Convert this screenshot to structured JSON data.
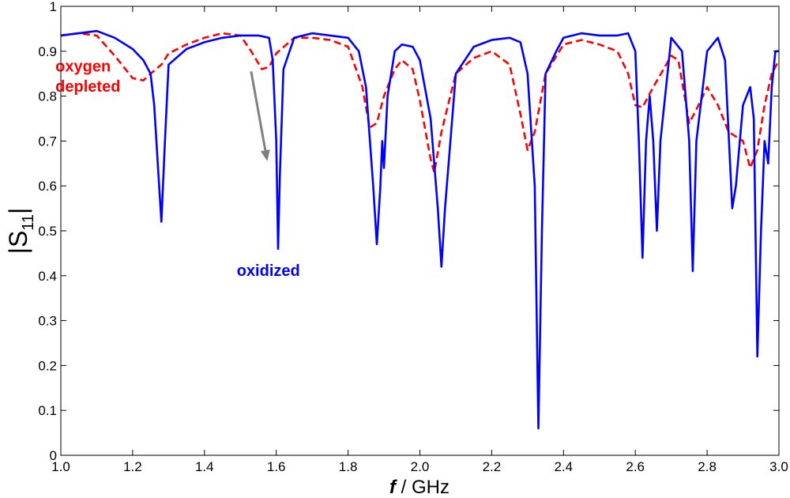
{
  "chart_data": {
    "type": "line",
    "title": "",
    "xlabel_italic": "f",
    "xlabel_rest": " / GHz",
    "ylabel_main": "|S",
    "ylabel_sub": "11",
    "ylabel_end": "|",
    "xlim": [
      1.0,
      3.0
    ],
    "ylim": [
      0,
      1
    ],
    "xticks": [
      "1.0",
      "1.2",
      "1.4",
      "1.6",
      "1.8",
      "2.0",
      "2.2",
      "2.4",
      "2.6",
      "2.8",
      "3.0"
    ],
    "yticks": [
      "0",
      "0.1",
      "0.2",
      "0.3",
      "0.4",
      "0.5",
      "0.6",
      "0.7",
      "0.8",
      "0.9",
      "1"
    ],
    "grid": false,
    "legend": "none",
    "series": [
      {
        "name": "oxidized",
        "color": "#0000ff",
        "style": "solid",
        "points": [
          [
            1.0,
            0.935
          ],
          [
            1.05,
            0.94
          ],
          [
            1.1,
            0.945
          ],
          [
            1.15,
            0.93
          ],
          [
            1.2,
            0.905
          ],
          [
            1.23,
            0.88
          ],
          [
            1.25,
            0.85
          ],
          [
            1.26,
            0.78
          ],
          [
            1.27,
            0.65
          ],
          [
            1.28,
            0.52
          ],
          [
            1.29,
            0.7
          ],
          [
            1.3,
            0.87
          ],
          [
            1.35,
            0.905
          ],
          [
            1.4,
            0.92
          ],
          [
            1.45,
            0.93
          ],
          [
            1.5,
            0.935
          ],
          [
            1.55,
            0.935
          ],
          [
            1.58,
            0.93
          ],
          [
            1.59,
            0.88
          ],
          [
            1.6,
            0.7
          ],
          [
            1.605,
            0.46
          ],
          [
            1.61,
            0.62
          ],
          [
            1.62,
            0.86
          ],
          [
            1.65,
            0.93
          ],
          [
            1.7,
            0.94
          ],
          [
            1.75,
            0.935
          ],
          [
            1.8,
            0.93
          ],
          [
            1.83,
            0.9
          ],
          [
            1.85,
            0.82
          ],
          [
            1.87,
            0.6
          ],
          [
            1.88,
            0.47
          ],
          [
            1.89,
            0.6
          ],
          [
            1.895,
            0.7
          ],
          [
            1.9,
            0.64
          ],
          [
            1.91,
            0.8
          ],
          [
            1.93,
            0.9
          ],
          [
            1.95,
            0.915
          ],
          [
            1.98,
            0.91
          ],
          [
            2.0,
            0.88
          ],
          [
            2.03,
            0.75
          ],
          [
            2.05,
            0.55
          ],
          [
            2.06,
            0.42
          ],
          [
            2.07,
            0.55
          ],
          [
            2.1,
            0.85
          ],
          [
            2.15,
            0.91
          ],
          [
            2.2,
            0.925
          ],
          [
            2.25,
            0.93
          ],
          [
            2.28,
            0.92
          ],
          [
            2.3,
            0.85
          ],
          [
            2.32,
            0.6
          ],
          [
            2.33,
            0.06
          ],
          [
            2.34,
            0.5
          ],
          [
            2.35,
            0.85
          ],
          [
            2.38,
            0.9
          ],
          [
            2.4,
            0.93
          ],
          [
            2.45,
            0.94
          ],
          [
            2.5,
            0.935
          ],
          [
            2.55,
            0.935
          ],
          [
            2.58,
            0.94
          ],
          [
            2.6,
            0.9
          ],
          [
            2.61,
            0.7
          ],
          [
            2.62,
            0.44
          ],
          [
            2.63,
            0.7
          ],
          [
            2.64,
            0.8
          ],
          [
            2.65,
            0.7
          ],
          [
            2.66,
            0.5
          ],
          [
            2.67,
            0.7
          ],
          [
            2.7,
            0.93
          ],
          [
            2.73,
            0.9
          ],
          [
            2.75,
            0.7
          ],
          [
            2.76,
            0.41
          ],
          [
            2.77,
            0.7
          ],
          [
            2.8,
            0.9
          ],
          [
            2.83,
            0.93
          ],
          [
            2.85,
            0.88
          ],
          [
            2.87,
            0.55
          ],
          [
            2.88,
            0.6
          ],
          [
            2.9,
            0.78
          ],
          [
            2.92,
            0.82
          ],
          [
            2.93,
            0.75
          ],
          [
            2.94,
            0.22
          ],
          [
            2.95,
            0.5
          ],
          [
            2.96,
            0.7
          ],
          [
            2.97,
            0.65
          ],
          [
            2.98,
            0.82
          ],
          [
            2.99,
            0.9
          ],
          [
            3.0,
            0.9
          ]
        ]
      },
      {
        "name": "oxygen depleted",
        "color": "#ff0000",
        "style": "dashed",
        "points": [
          [
            1.0,
            0.935
          ],
          [
            1.05,
            0.94
          ],
          [
            1.1,
            0.935
          ],
          [
            1.15,
            0.89
          ],
          [
            1.2,
            0.84
          ],
          [
            1.23,
            0.835
          ],
          [
            1.25,
            0.85
          ],
          [
            1.28,
            0.87
          ],
          [
            1.3,
            0.895
          ],
          [
            1.35,
            0.915
          ],
          [
            1.4,
            0.93
          ],
          [
            1.45,
            0.94
          ],
          [
            1.5,
            0.935
          ],
          [
            1.53,
            0.9
          ],
          [
            1.56,
            0.86
          ],
          [
            1.58,
            0.865
          ],
          [
            1.6,
            0.895
          ],
          [
            1.65,
            0.93
          ],
          [
            1.7,
            0.93
          ],
          [
            1.75,
            0.925
          ],
          [
            1.8,
            0.91
          ],
          [
            1.84,
            0.82
          ],
          [
            1.86,
            0.73
          ],
          [
            1.88,
            0.74
          ],
          [
            1.9,
            0.8
          ],
          [
            1.93,
            0.86
          ],
          [
            1.95,
            0.88
          ],
          [
            1.98,
            0.86
          ],
          [
            2.0,
            0.79
          ],
          [
            2.03,
            0.66
          ],
          [
            2.04,
            0.63
          ],
          [
            2.06,
            0.72
          ],
          [
            2.1,
            0.85
          ],
          [
            2.15,
            0.885
          ],
          [
            2.2,
            0.9
          ],
          [
            2.25,
            0.87
          ],
          [
            2.28,
            0.76
          ],
          [
            2.3,
            0.68
          ],
          [
            2.32,
            0.72
          ],
          [
            2.35,
            0.85
          ],
          [
            2.4,
            0.915
          ],
          [
            2.45,
            0.925
          ],
          [
            2.5,
            0.915
          ],
          [
            2.55,
            0.9
          ],
          [
            2.58,
            0.85
          ],
          [
            2.6,
            0.78
          ],
          [
            2.62,
            0.775
          ],
          [
            2.65,
            0.82
          ],
          [
            2.7,
            0.89
          ],
          [
            2.72,
            0.88
          ],
          [
            2.75,
            0.74
          ],
          [
            2.77,
            0.77
          ],
          [
            2.8,
            0.82
          ],
          [
            2.83,
            0.78
          ],
          [
            2.86,
            0.72
          ],
          [
            2.9,
            0.7
          ],
          [
            2.92,
            0.64
          ],
          [
            2.94,
            0.68
          ],
          [
            2.96,
            0.78
          ],
          [
            2.98,
            0.85
          ],
          [
            3.0,
            0.88
          ]
        ]
      }
    ],
    "annotations": [
      {
        "text": "oxygen",
        "color": "#ff0000",
        "x": 0.985,
        "y": 0.855
      },
      {
        "text": "depleted",
        "color": "#ff0000",
        "x": 0.985,
        "y": 0.81
      },
      {
        "text": "oxidized",
        "color": "#0000ff",
        "x": 1.49,
        "y": 0.4
      }
    ],
    "arrow": {
      "color": "#808080",
      "from": [
        1.53,
        0.855
      ],
      "to": [
        1.575,
        0.655
      ]
    }
  }
}
